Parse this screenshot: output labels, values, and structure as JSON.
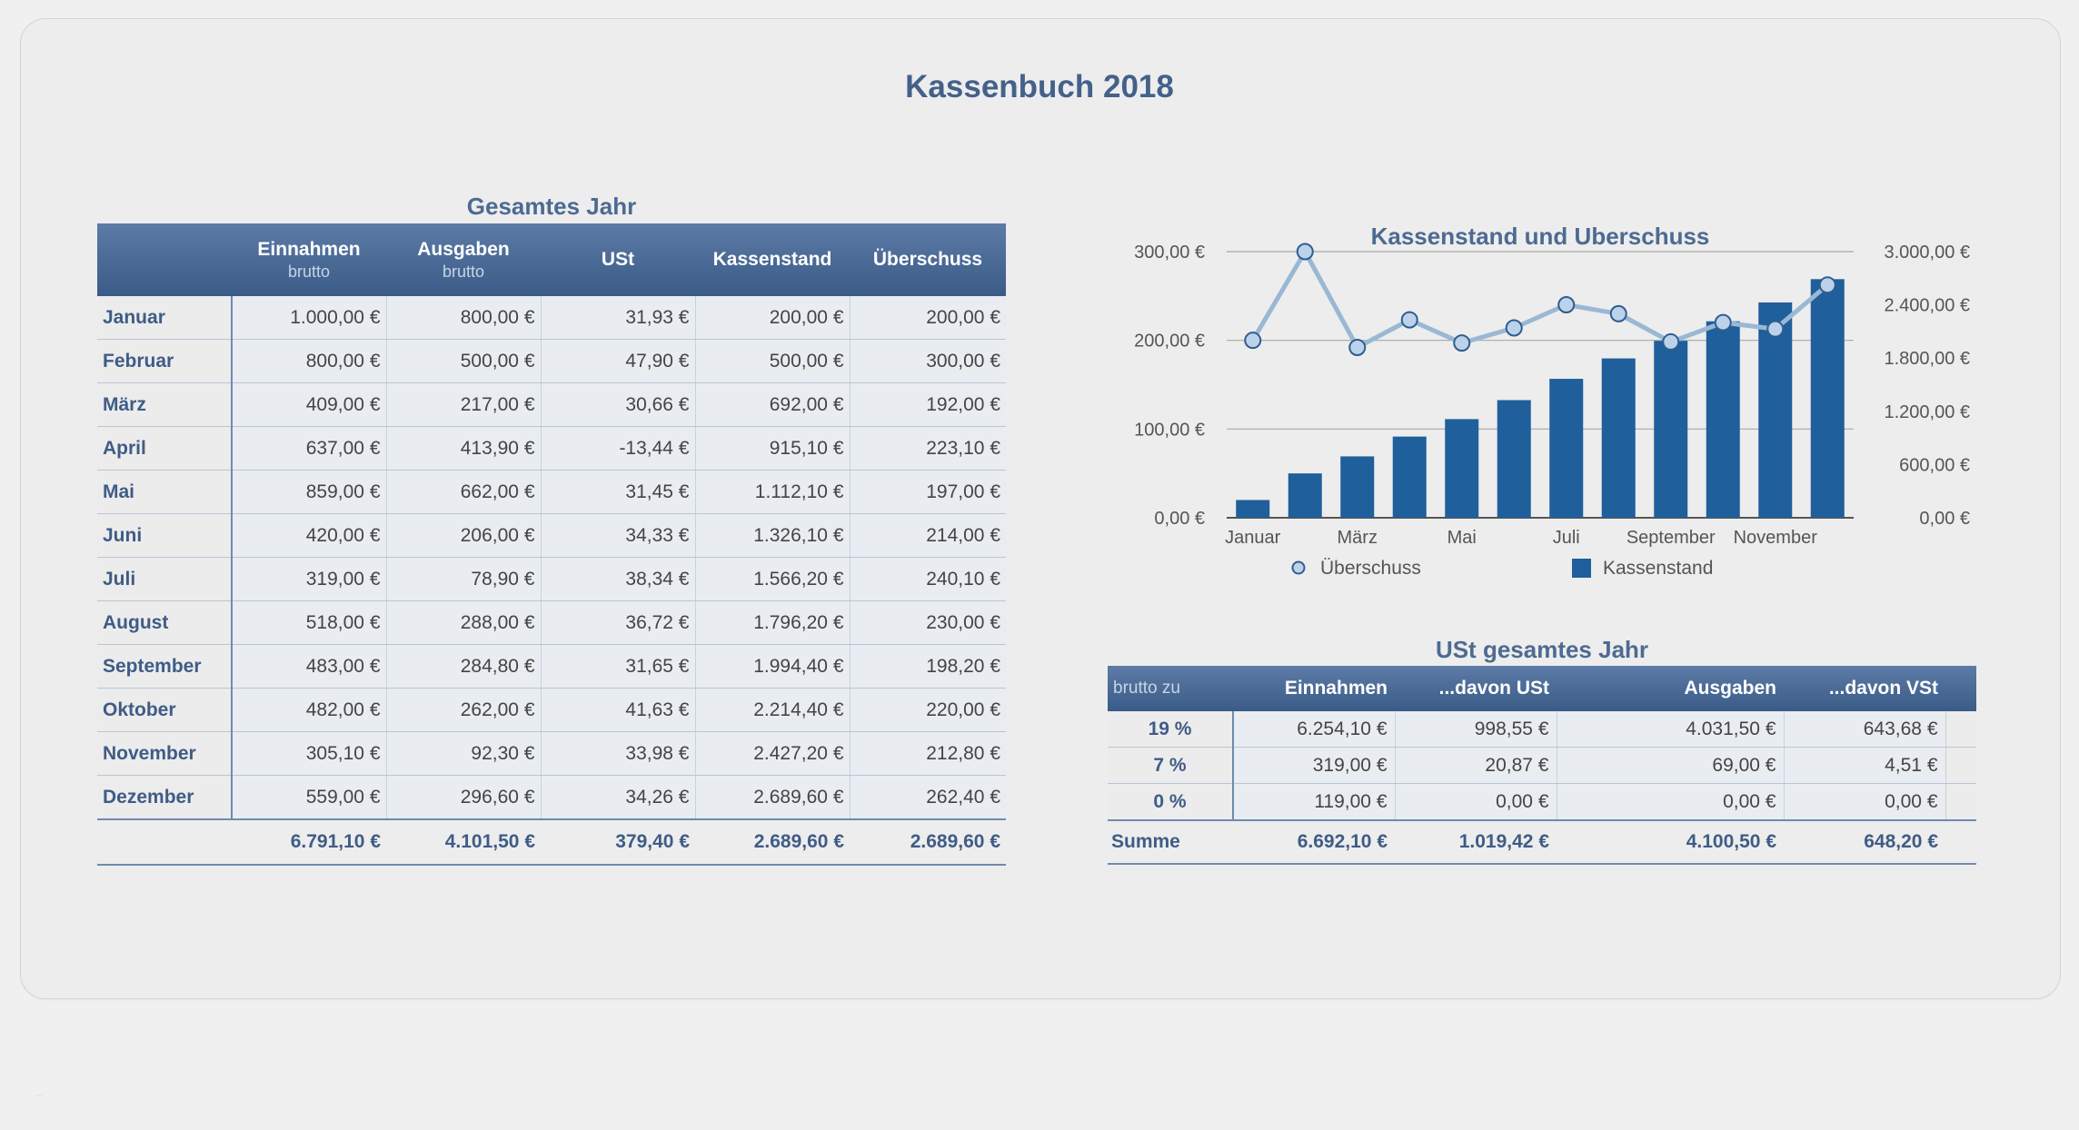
{
  "page": {
    "title": "Kassenbuch 2018",
    "watermark": "_"
  },
  "year_table": {
    "title": "Gesamtes Jahr",
    "headers": [
      {
        "label": "",
        "sub": ""
      },
      {
        "label": "Einnahmen",
        "sub": "brutto"
      },
      {
        "label": "Ausgaben",
        "sub": "brutto"
      },
      {
        "label": "USt",
        "sub": ""
      },
      {
        "label": "Kassenstand",
        "sub": ""
      },
      {
        "label": "Überschuss",
        "sub": ""
      }
    ],
    "rows": [
      {
        "month": "Januar",
        "einnahmen": "1.000,00 €",
        "ausgaben": "800,00 €",
        "ust": "31,93 €",
        "kassenstand": "200,00 €",
        "ueberschuss": "200,00 €"
      },
      {
        "month": "Februar",
        "einnahmen": "800,00 €",
        "ausgaben": "500,00 €",
        "ust": "47,90 €",
        "kassenstand": "500,00 €",
        "ueberschuss": "300,00 €"
      },
      {
        "month": "März",
        "einnahmen": "409,00 €",
        "ausgaben": "217,00 €",
        "ust": "30,66 €",
        "kassenstand": "692,00 €",
        "ueberschuss": "192,00 €"
      },
      {
        "month": "April",
        "einnahmen": "637,00 €",
        "ausgaben": "413,90 €",
        "ust": "-13,44 €",
        "kassenstand": "915,10 €",
        "ueberschuss": "223,10 €"
      },
      {
        "month": "Mai",
        "einnahmen": "859,00 €",
        "ausgaben": "662,00 €",
        "ust": "31,45 €",
        "kassenstand": "1.112,10 €",
        "ueberschuss": "197,00 €"
      },
      {
        "month": "Juni",
        "einnahmen": "420,00 €",
        "ausgaben": "206,00 €",
        "ust": "34,33 €",
        "kassenstand": "1.326,10 €",
        "ueberschuss": "214,00 €"
      },
      {
        "month": "Juli",
        "einnahmen": "319,00 €",
        "ausgaben": "78,90 €",
        "ust": "38,34 €",
        "kassenstand": "1.566,20 €",
        "ueberschuss": "240,10 €"
      },
      {
        "month": "August",
        "einnahmen": "518,00 €",
        "ausgaben": "288,00 €",
        "ust": "36,72 €",
        "kassenstand": "1.796,20 €",
        "ueberschuss": "230,00 €"
      },
      {
        "month": "September",
        "einnahmen": "483,00 €",
        "ausgaben": "284,80 €",
        "ust": "31,65 €",
        "kassenstand": "1.994,40 €",
        "ueberschuss": "198,20 €"
      },
      {
        "month": "Oktober",
        "einnahmen": "482,00 €",
        "ausgaben": "262,00 €",
        "ust": "41,63 €",
        "kassenstand": "2.214,40 €",
        "ueberschuss": "220,00 €"
      },
      {
        "month": "November",
        "einnahmen": "305,10 €",
        "ausgaben": "92,30 €",
        "ust": "33,98 €",
        "kassenstand": "2.427,20 €",
        "ueberschuss": "212,80 €"
      },
      {
        "month": "Dezember",
        "einnahmen": "559,00 €",
        "ausgaben": "296,60 €",
        "ust": "34,26 €",
        "kassenstand": "2.689,60 €",
        "ueberschuss": "262,40 €"
      }
    ],
    "totals": {
      "label": "",
      "einnahmen": "6.791,10 €",
      "ausgaben": "4.101,50 €",
      "ust": "379,40 €",
      "kassenstand": "2.689,60 €",
      "ueberschuss": "2.689,60 €"
    }
  },
  "chart_data": {
    "type": "bar",
    "title": "Kassenstand und Überschuss",
    "categories": [
      "Januar",
      "Februar",
      "März",
      "April",
      "Mai",
      "Juni",
      "Juli",
      "August",
      "September",
      "Oktober",
      "November",
      "Dezember"
    ],
    "x_tick_labels": [
      "Januar",
      "März",
      "Mai",
      "Juli",
      "September",
      "November"
    ],
    "series": [
      {
        "name": "Kassenstand",
        "type": "bar",
        "axis": "right",
        "color": "#1f5f9b",
        "values": [
          200.0,
          500.0,
          692.0,
          915.1,
          1112.1,
          1326.1,
          1566.2,
          1796.2,
          1994.4,
          2214.4,
          2427.2,
          2689.6
        ]
      },
      {
        "name": "Überschuss",
        "type": "line",
        "axis": "left",
        "color": "#9ab8d4",
        "values": [
          200.0,
          300.0,
          192.0,
          223.1,
          197.0,
          214.0,
          240.1,
          230.0,
          198.2,
          220.0,
          212.8,
          262.4
        ]
      }
    ],
    "y_left": {
      "ticks": [
        "0,00 €",
        "100,00 €",
        "200,00 €",
        "300,00 €"
      ],
      "range": [
        0,
        300
      ]
    },
    "y_right": {
      "ticks": [
        "0,00 €",
        "600,00 €",
        "1.200,00 €",
        "1.800,00 €",
        "2.400,00 €",
        "3.000,00 €"
      ],
      "range": [
        0,
        3000
      ]
    },
    "legend": [
      "Überschuss",
      "Kassenstand"
    ],
    "legend_position": "bottom",
    "grid": true
  },
  "ust_table": {
    "title": "USt gesamtes Jahr",
    "headers": [
      "brutto zu",
      "Einnahmen",
      "...davon USt",
      "Ausgaben",
      "...davon VSt",
      ""
    ],
    "rows": [
      {
        "rate": "19 %",
        "einnahmen": "6.254,10 €",
        "ust": "998,55 €",
        "ausgaben": "4.031,50 €",
        "vst": "643,68 €"
      },
      {
        "rate": "7 %",
        "einnahmen": "319,00 €",
        "ust": "20,87 €",
        "ausgaben": "69,00 €",
        "vst": "4,51 €"
      },
      {
        "rate": "0 %",
        "einnahmen": "119,00 €",
        "ust": "0,00 €",
        "ausgaben": "0,00 €",
        "vst": "0,00 €"
      }
    ],
    "totals": {
      "label": "Summe",
      "einnahmen": "6.692,10 €",
      "ust": "1.019,42 €",
      "ausgaben": "4.100,50 €",
      "vst": "648,20 €"
    }
  },
  "colors": {
    "title": "#44618a",
    "header_bg": "#3b5b88",
    "bar": "#1f5f9b",
    "line": "#9ab8d4"
  }
}
